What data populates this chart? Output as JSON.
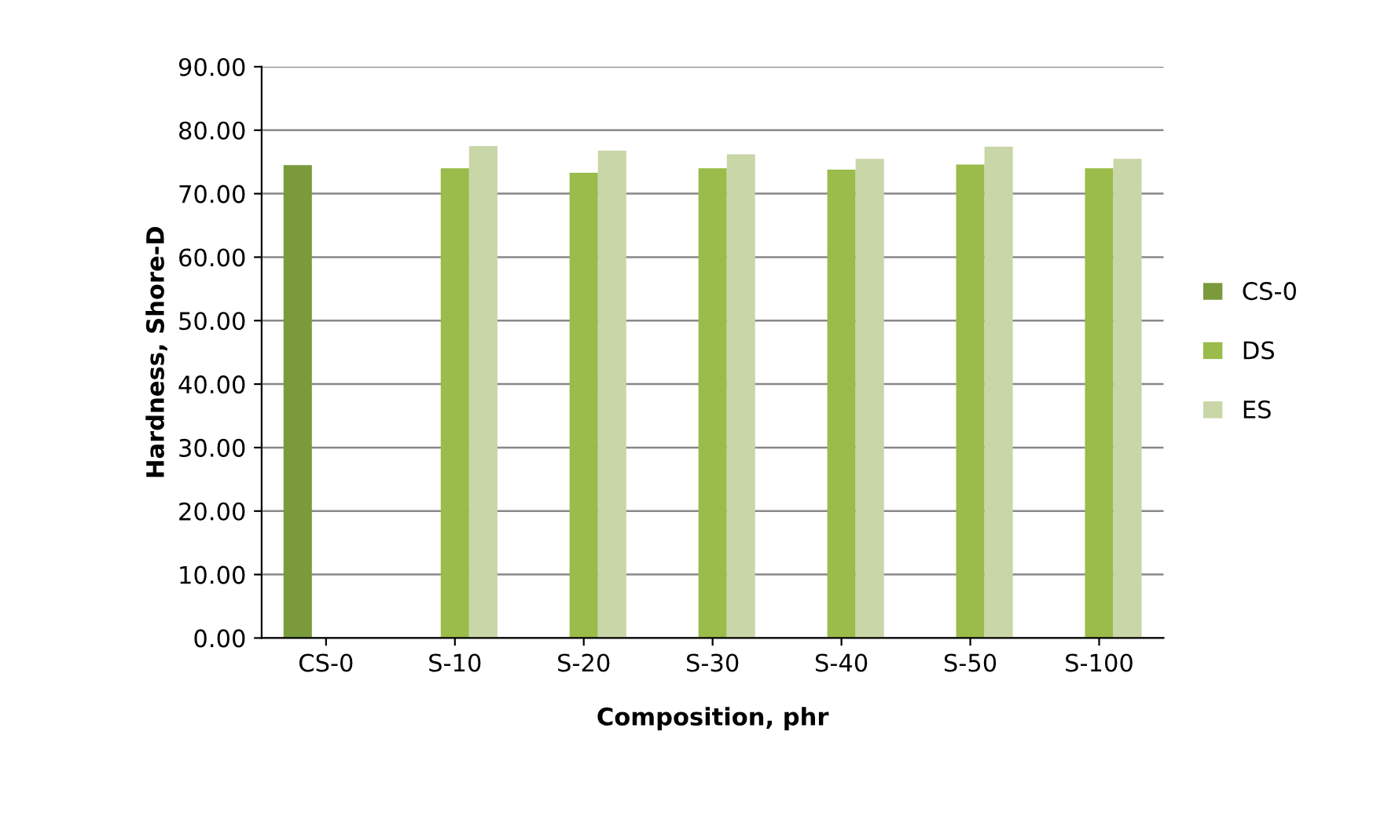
{
  "chart_data": {
    "type": "bar",
    "xlabel": "Composition, phr",
    "ylabel": "Hardness, Shore-D",
    "categories": [
      "CS-0",
      "S-10",
      "S-20",
      "S-30",
      "S-40",
      "S-50",
      "S-100"
    ],
    "series": [
      {
        "name": "CS-0",
        "color": "#7a9a3c",
        "values": [
          74.5,
          null,
          null,
          null,
          null,
          null,
          null
        ]
      },
      {
        "name": "DS",
        "color": "#9bbb4a",
        "values": [
          null,
          74.0,
          73.3,
          74.0,
          73.8,
          74.6,
          74.0
        ]
      },
      {
        "name": "ES",
        "color": "#c8d6a8",
        "values": [
          null,
          77.5,
          76.8,
          76.2,
          75.5,
          77.4,
          75.5
        ]
      }
    ],
    "ylim": [
      0,
      90
    ],
    "yticks": [
      {
        "value": 0,
        "label": "0.00"
      },
      {
        "value": 10,
        "label": "10.00"
      },
      {
        "value": 20,
        "label": "20.00"
      },
      {
        "value": 30,
        "label": "30.00"
      },
      {
        "value": 40,
        "label": "40.00"
      },
      {
        "value": 50,
        "label": "50.00"
      },
      {
        "value": 60,
        "label": "60.00"
      },
      {
        "value": 70,
        "label": "70.00"
      },
      {
        "value": 80,
        "label": "80.00"
      },
      {
        "value": 90,
        "label": "90.00"
      }
    ],
    "grid": "y",
    "legend": "right"
  }
}
